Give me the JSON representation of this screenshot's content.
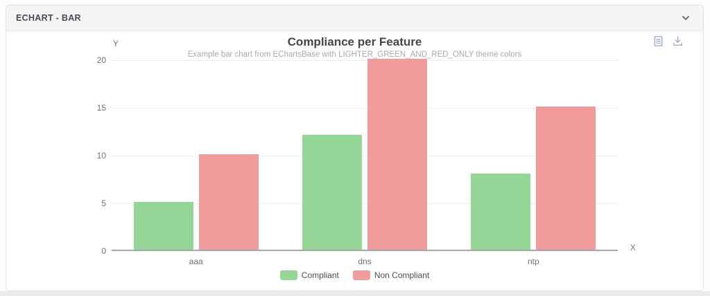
{
  "panel": {
    "title": "ECHART - BAR",
    "collapse_icon": "chevron-down"
  },
  "toolbox": {
    "icons": [
      {
        "name": "data-view-icon",
        "glyph": "document-lines",
        "color": "#a3aecb"
      },
      {
        "name": "save-image-icon",
        "glyph": "download-arrow",
        "color": "#a3aecb"
      }
    ]
  },
  "chart_data": {
    "type": "bar",
    "title": "Compliance per Feature",
    "subtitle": "Example bar chart from EChartsBase with LIGHTER_GREEN_AND_RED_ONLY theme colors",
    "categories": [
      "aaa",
      "dns",
      "ntp"
    ],
    "series": [
      {
        "name": "Compliant",
        "color": "#95d595",
        "values": [
          5,
          12,
          8
        ]
      },
      {
        "name": "Non Compliant",
        "color": "#f09c9c",
        "values": [
          10,
          20,
          15
        ]
      }
    ],
    "xlabel": "X",
    "ylabel": "Y",
    "ylim": [
      0,
      20
    ],
    "yticks": [
      0,
      5,
      10,
      15,
      20
    ],
    "grid": true,
    "legend_position": "bottom",
    "colors": {
      "grid_line": "#ededed",
      "axis_line": "#a7a7a7",
      "tick_text": "#6e7079"
    }
  }
}
